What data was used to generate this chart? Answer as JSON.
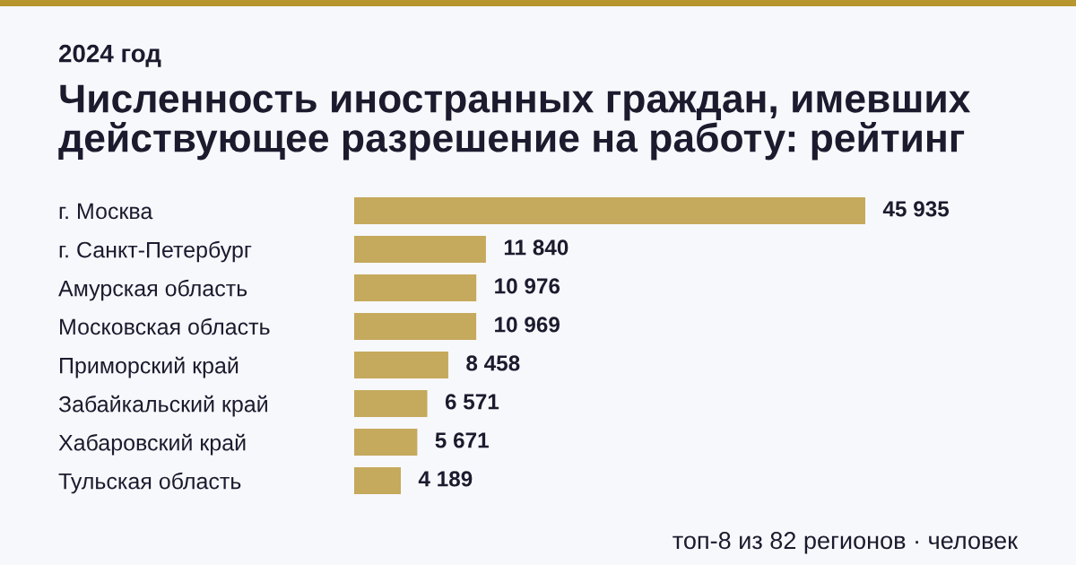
{
  "chart_data": {
    "type": "bar",
    "orientation": "horizontal",
    "title": "Численность иностранных граждан, имевших действующее разрешение на работу: рейтинг",
    "subtitle": "2024 год",
    "categories": [
      "г. Москва",
      "г. Санкт-Петербург",
      "Амурская область",
      "Московская область",
      "Приморский край",
      "Забайкальский край",
      "Хабаровский край",
      "Тульская область"
    ],
    "values": [
      45935,
      11840,
      10976,
      10969,
      8458,
      6571,
      5671,
      4189
    ],
    "value_labels": [
      "45 935",
      "11 840",
      "10 976",
      "10 969",
      "8 458",
      "6 571",
      "5 671",
      "4 189"
    ],
    "color": "#c5a95c",
    "annotations": [
      "топ-8 из 82 регионов · человек"
    ],
    "grid": false
  }
}
